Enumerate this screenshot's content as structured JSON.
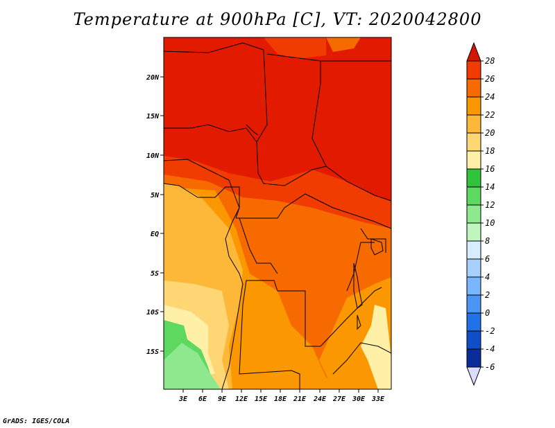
{
  "title": "Temperature at 900hPa [C], VT: 2020042800",
  "credit": "GrADS: IGES/COLA",
  "map": {
    "lon_ticks": [
      "3E",
      "6E",
      "9E",
      "12E",
      "15E",
      "18E",
      "21E",
      "24E",
      "27E",
      "30E",
      "33E"
    ],
    "lat_ticks": [
      "20N",
      "15N",
      "10N",
      "5N",
      "EQ",
      "5S",
      "10S",
      "15S"
    ]
  },
  "colorbar": {
    "labels": [
      "28",
      "26",
      "24",
      "22",
      "20",
      "18",
      "16",
      "14",
      "12",
      "10",
      "8",
      "6",
      "4",
      "2",
      "0",
      "-2",
      "-4",
      "-6"
    ],
    "colors": [
      "#e11a00",
      "#f03c00",
      "#f66a00",
      "#fb9700",
      "#fdb83a",
      "#fed774",
      "#fef0a6",
      "#2fc43a",
      "#5fd85f",
      "#8ee88e",
      "#bff5bf",
      "#d8ecff",
      "#a8d0ff",
      "#7ab6ff",
      "#4b95f5",
      "#2072e6",
      "#0e4fc8",
      "#0b2d9a",
      "#06135f"
    ],
    "top_arrow_color": "#d41500",
    "bottom_arrow_color": "#dcdcff"
  },
  "regions": {
    "north_hot": "#e11a00",
    "central": "#f66a00",
    "west_coast": "#fdb83a",
    "southwest_cool": "#fed774",
    "southwest_green": "#8ee88e",
    "southwest_green_dark": "#5fd85f",
    "east_highlands": "#fef0a6"
  }
}
